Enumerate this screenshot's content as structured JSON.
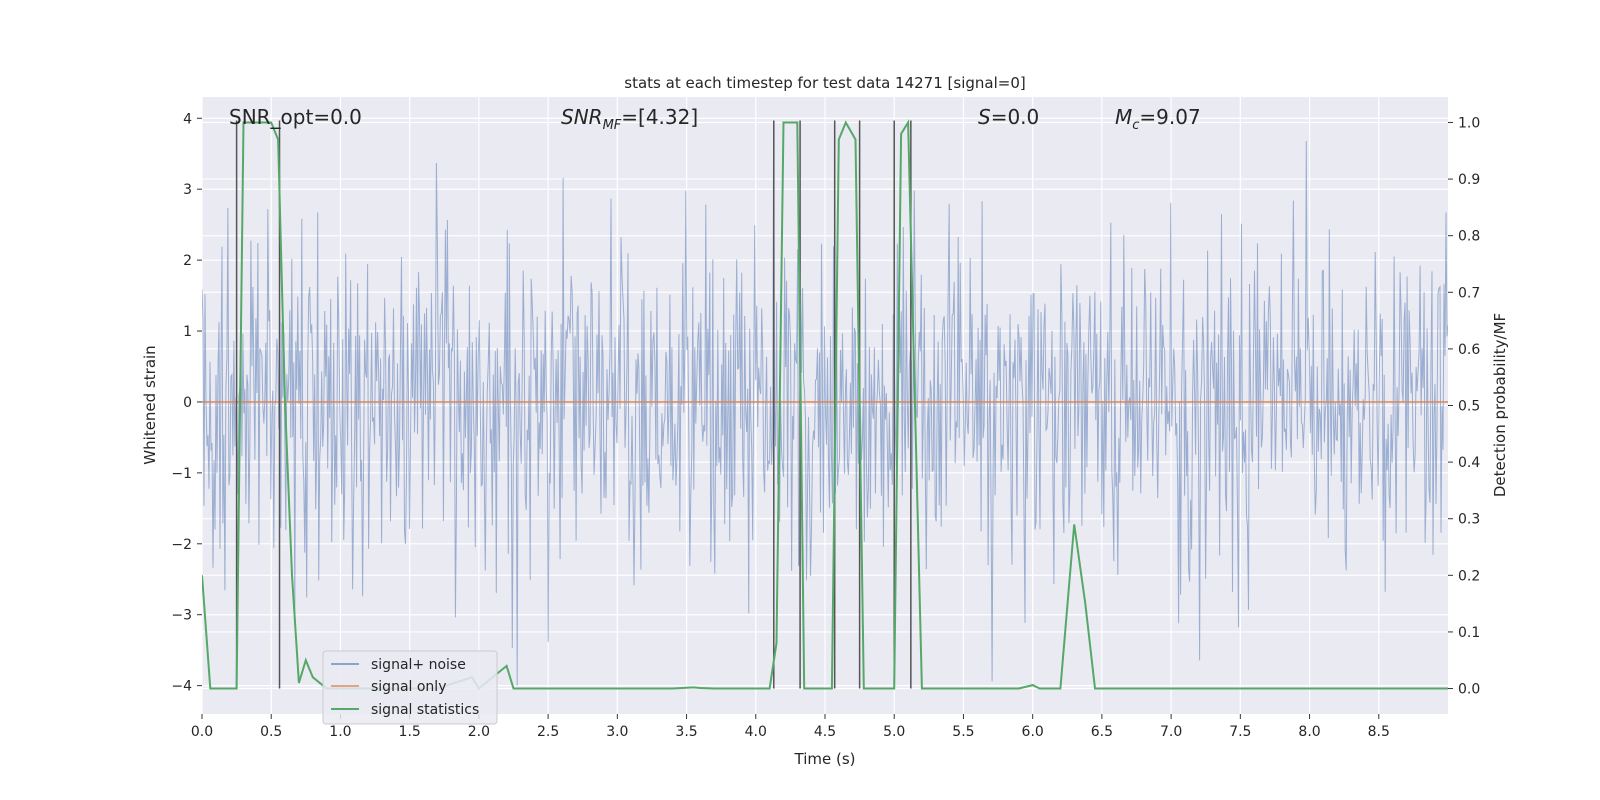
{
  "chart_data": {
    "type": "line",
    "title": "stats at each timestep for test data 14271 [signal=0]",
    "xlabel": "Time (s)",
    "ylabel_left": "Whitened strain",
    "ylabel_right": "Detection probability/MF",
    "xlim": [
      0.0,
      9.0
    ],
    "ylim_left": [
      -4.4,
      4.3
    ],
    "ylim_right": [
      -0.045,
      1.045
    ],
    "xticks": [
      "0.0",
      "0.5",
      "1.0",
      "1.5",
      "2.0",
      "2.5",
      "3.0",
      "3.5",
      "4.0",
      "4.5",
      "5.0",
      "5.5",
      "6.0",
      "6.5",
      "7.0",
      "7.5",
      "8.0",
      "8.5"
    ],
    "yticks_left": [
      "−4",
      "−3",
      "−2",
      "−1",
      "0",
      "1",
      "2",
      "3",
      "4"
    ],
    "yticks_right": [
      "0.0",
      "0.1",
      "0.2",
      "0.3",
      "0.4",
      "0.5",
      "0.6",
      "0.7",
      "0.8",
      "0.9",
      "1.0"
    ],
    "grid": true,
    "legend_position": "lower-left",
    "colors": {
      "background": "#eaeaf2",
      "grid": "#ffffff",
      "noise": "#4c72b0",
      "signal_only": "#dd8452",
      "statistics": "#55a868",
      "vlines": "#555555"
    },
    "annotations": {
      "snr_opt": "SNR_opt=0.0",
      "snr_mf_pre": "SNR",
      "snr_mf_sub": "MF",
      "snr_mf_post": "=[4.32]",
      "s_pre": "S",
      "s_post": "=0.0",
      "mc_pre": "M",
      "mc_sub": "c",
      "mc_post": "=9.07"
    },
    "series": [
      {
        "name": "signal+ noise",
        "axis": "left",
        "description": "whitened strain noise spanning roughly -4 to 4",
        "typical_envelope": [
          -1.6,
          2.1
        ],
        "extreme_range": [
          -4.0,
          4.0
        ]
      },
      {
        "name": "signal only",
        "axis": "left",
        "x": [
          0.0,
          9.0
        ],
        "y": [
          0.0,
          0.0
        ]
      },
      {
        "name": "signal statistics",
        "axis": "right",
        "x": [
          0.0,
          0.06,
          0.1,
          0.25,
          0.3,
          0.4,
          0.5,
          0.55,
          0.6,
          0.65,
          0.7,
          0.75,
          0.8,
          0.9,
          1.0,
          1.5,
          1.7,
          1.95,
          2.0,
          2.1,
          2.15,
          2.2,
          2.25,
          2.3,
          3.4,
          3.55,
          3.6,
          3.7,
          4.0,
          4.1,
          4.15,
          4.2,
          4.25,
          4.3,
          4.35,
          4.4,
          4.45,
          4.55,
          4.6,
          4.65,
          4.72,
          4.78,
          4.8,
          4.85,
          4.95,
          5.0,
          5.05,
          5.1,
          5.15,
          5.2,
          5.25,
          5.3,
          5.5,
          5.9,
          6.0,
          6.05,
          6.2,
          6.3,
          6.38,
          6.45,
          6.5,
          9.0
        ],
        "y": [
          0.2,
          0.0,
          0.0,
          0.0,
          1.0,
          1.0,
          1.0,
          0.97,
          0.5,
          0.2,
          0.01,
          0.05,
          0.02,
          0.0,
          0.0,
          0.0,
          0.0,
          0.02,
          0.0,
          0.02,
          0.03,
          0.04,
          0.0,
          0.0,
          0.0,
          0.002,
          0.001,
          0.0,
          0.0,
          0.0,
          0.08,
          1.0,
          1.0,
          1.0,
          0.0,
          0.0,
          0.0,
          0.0,
          0.97,
          1.0,
          0.97,
          0.0,
          0.0,
          0.0,
          0.0,
          0.0,
          0.98,
          1.0,
          0.5,
          0.0,
          0.0,
          0.0,
          0.0,
          0.0,
          0.006,
          0.0,
          0.0,
          0.29,
          0.15,
          0.0,
          0.0,
          0.0
        ]
      }
    ],
    "vlines_x": [
      0.25,
      0.56,
      4.13,
      4.32,
      4.57,
      4.75,
      5.0,
      5.12
    ]
  },
  "legend": {
    "noise_label": "signal+ noise",
    "signal_label": "signal only",
    "stats_label": "signal statistics"
  }
}
